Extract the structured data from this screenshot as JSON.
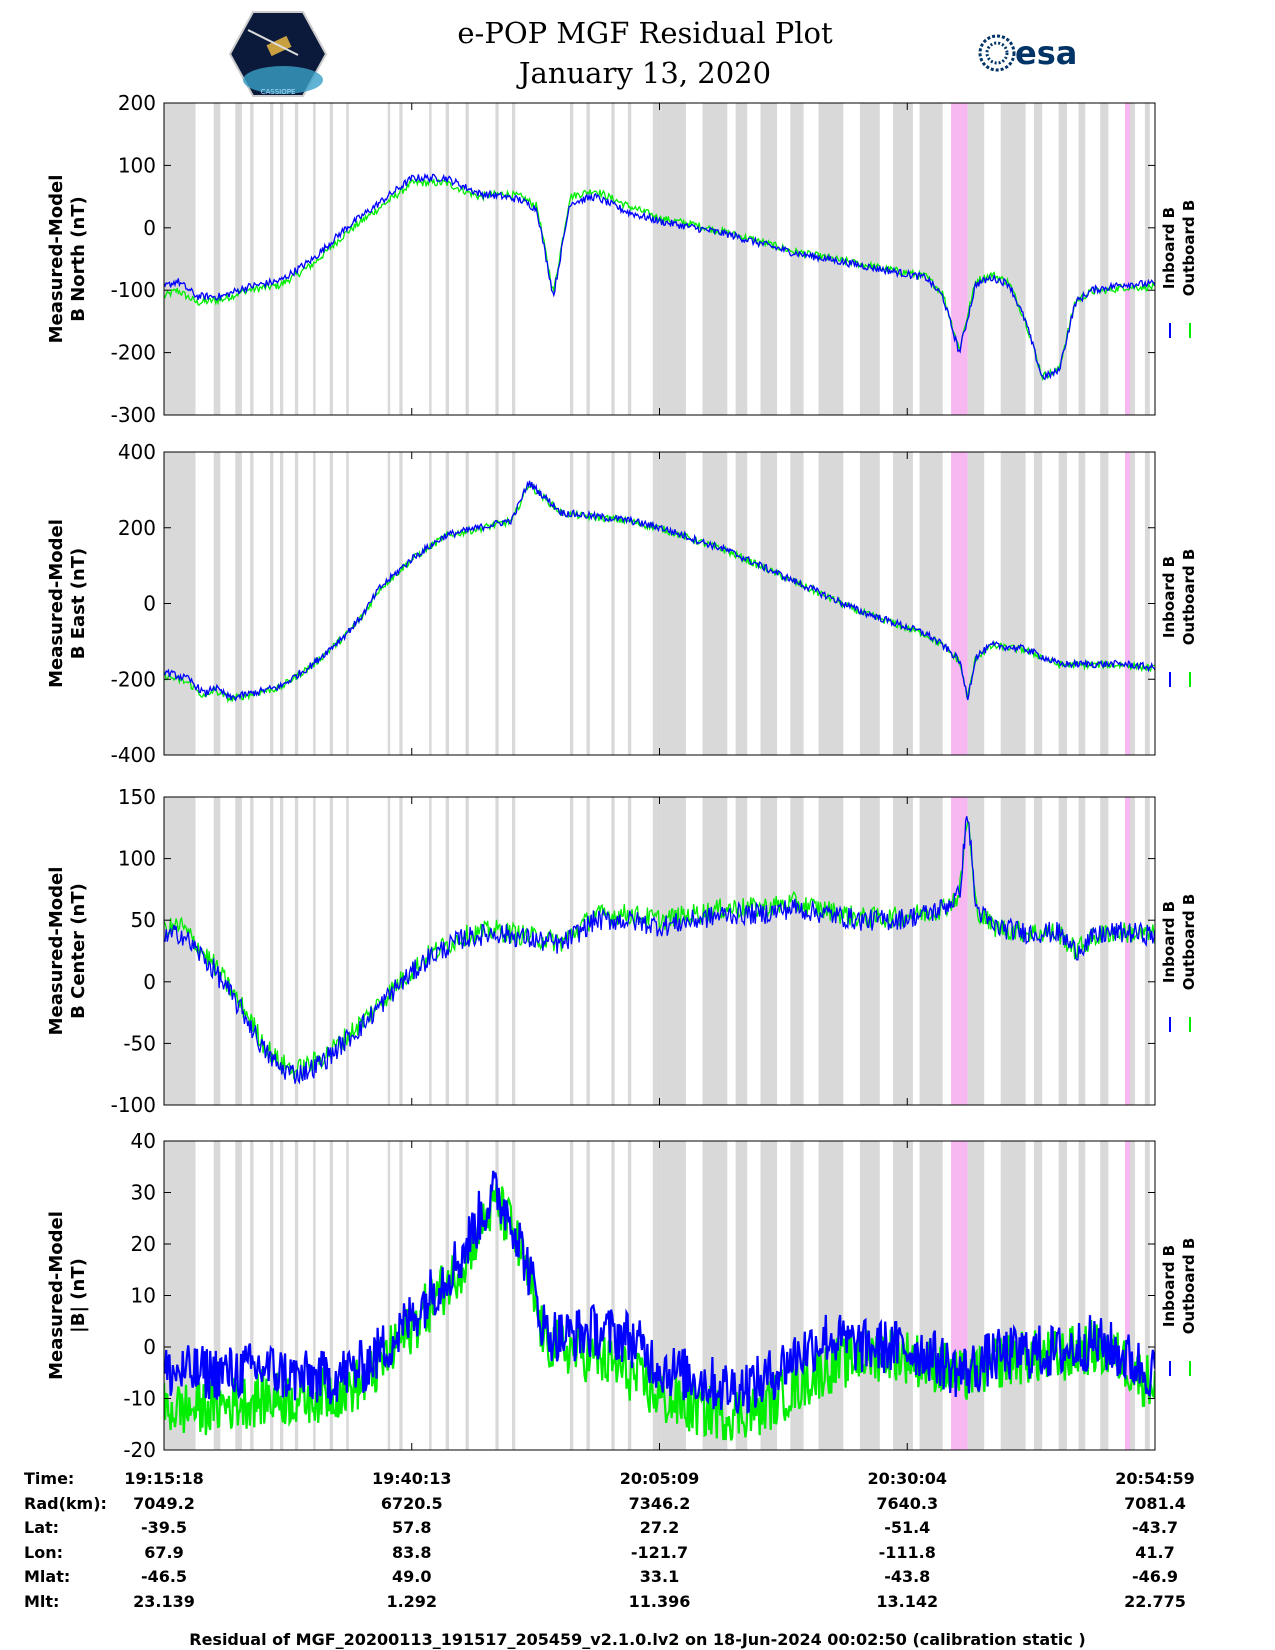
{
  "header": {
    "title_line1": "e-POP MGF Residual Plot",
    "title_line2": "January 13, 2020",
    "logo_left_text": "CASSIOPE",
    "logo_right_text": "esa"
  },
  "colors": {
    "inboard": "#0000ff",
    "outboard": "#00ee00",
    "gray_band": "#d9d9d9",
    "pink_band": "#f7b8f2"
  },
  "legend": {
    "inboard_label": "Inboard B",
    "outboard_label": "Outboard B"
  },
  "time_axis": {
    "start_seconds": 0,
    "end_seconds": 5981
  },
  "chart_data": [
    {
      "type": "line",
      "id": "b-north",
      "ylabel_line1": "Measured-Model",
      "ylabel_line2": "B North (nT)",
      "ylim": [
        -300,
        200
      ],
      "yticks": [
        -300,
        -200,
        -100,
        0,
        100,
        200
      ],
      "series": [
        {
          "name": "Inboard B",
          "x": [
            0,
            80,
            200,
            350,
            500,
            700,
            900,
            1100,
            1300,
            1500,
            1700,
            1900,
            2050,
            2150,
            2250,
            2350,
            2450,
            2600,
            2800,
            3000,
            3200,
            3400,
            3600,
            3800,
            4000,
            4200,
            4400,
            4600,
            4700,
            4800,
            4900,
            5000,
            5100,
            5200,
            5300,
            5400,
            5500,
            5600,
            5700,
            5800,
            5981
          ],
          "values": [
            -95,
            -85,
            -110,
            -110,
            -95,
            -85,
            -50,
            0,
            40,
            80,
            80,
            55,
            50,
            45,
            30,
            -110,
            40,
            50,
            25,
            10,
            0,
            -10,
            -25,
            -40,
            -50,
            -60,
            -70,
            -80,
            -110,
            -200,
            -90,
            -80,
            -90,
            -150,
            -240,
            -230,
            -120,
            -100,
            -95,
            -90,
            -90
          ]
        },
        {
          "name": "Outboard B",
          "x": [
            0,
            80,
            200,
            350,
            500,
            700,
            900,
            1100,
            1300,
            1500,
            1700,
            1900,
            2050,
            2150,
            2250,
            2350,
            2450,
            2600,
            2800,
            3000,
            3200,
            3400,
            3600,
            3800,
            4000,
            4200,
            4400,
            4600,
            4700,
            4800,
            4900,
            5000,
            5100,
            5200,
            5300,
            5400,
            5500,
            5600,
            5700,
            5800,
            5981
          ],
          "values": [
            -110,
            -100,
            -120,
            -115,
            -100,
            -92,
            -58,
            -8,
            32,
            72,
            72,
            50,
            55,
            50,
            35,
            -105,
            50,
            60,
            35,
            15,
            5,
            -8,
            -22,
            -38,
            -48,
            -58,
            -68,
            -78,
            -105,
            -195,
            -85,
            -75,
            -88,
            -150,
            -238,
            -228,
            -118,
            -102,
            -100,
            -95,
            -95
          ]
        }
      ]
    },
    {
      "type": "line",
      "id": "b-east",
      "ylabel_line1": "Measured-Model",
      "ylabel_line2": "B East (nT)",
      "ylim": [
        -400,
        400
      ],
      "yticks": [
        -400,
        -200,
        0,
        200,
        400
      ],
      "series": [
        {
          "name": "Inboard B",
          "x": [
            0,
            150,
            250,
            300,
            400,
            500,
            700,
            900,
            1100,
            1200,
            1300,
            1500,
            1700,
            1900,
            2100,
            2200,
            2400,
            2600,
            2800,
            3000,
            3200,
            3400,
            3600,
            3800,
            4000,
            4200,
            4400,
            4600,
            4700,
            4800,
            4850,
            4900,
            5000,
            5200,
            5400,
            5600,
            5800,
            5981
          ],
          "values": [
            -180,
            -200,
            -240,
            -220,
            -250,
            -240,
            -220,
            -160,
            -80,
            -30,
            40,
            120,
            180,
            200,
            220,
            320,
            240,
            230,
            220,
            200,
            170,
            140,
            100,
            60,
            20,
            -20,
            -50,
            -80,
            -110,
            -150,
            -250,
            -140,
            -110,
            -120,
            -160,
            -160,
            -160,
            -170
          ]
        },
        {
          "name": "Outboard B",
          "x": [
            0,
            150,
            250,
            300,
            400,
            500,
            700,
            900,
            1100,
            1200,
            1300,
            1500,
            1700,
            1900,
            2100,
            2200,
            2400,
            2600,
            2800,
            3000,
            3200,
            3400,
            3600,
            3800,
            4000,
            4200,
            4400,
            4600,
            4700,
            4800,
            4850,
            4900,
            5000,
            5200,
            5400,
            5600,
            5800,
            5981
          ],
          "values": [
            -190,
            -210,
            -250,
            -228,
            -252,
            -242,
            -222,
            -162,
            -82,
            -32,
            38,
            118,
            178,
            198,
            218,
            315,
            238,
            228,
            218,
            198,
            168,
            138,
            98,
            58,
            18,
            -22,
            -52,
            -82,
            -112,
            -152,
            -248,
            -142,
            -112,
            -122,
            -162,
            -162,
            -162,
            -172
          ]
        }
      ]
    },
    {
      "type": "line",
      "id": "b-center",
      "ylabel_line1": "Measured-Model",
      "ylabel_line2": "B Center (nT)",
      "ylim": [
        -100,
        150
      ],
      "yticks": [
        -100,
        -50,
        0,
        50,
        100,
        150
      ],
      "series": [
        {
          "name": "Inboard B",
          "x": [
            0,
            100,
            200,
            300,
            400,
            500,
            600,
            700,
            800,
            900,
            1000,
            1200,
            1400,
            1600,
            1800,
            2000,
            2200,
            2400,
            2600,
            2800,
            3000,
            3200,
            3400,
            3600,
            3800,
            4000,
            4200,
            4400,
            4600,
            4700,
            4800,
            4850,
            4900,
            5000,
            5200,
            5400,
            5500,
            5600,
            5700,
            5800,
            5981
          ],
          "values": [
            35,
            40,
            25,
            10,
            -10,
            -30,
            -55,
            -70,
            -75,
            -70,
            -60,
            -35,
            -5,
            20,
            35,
            40,
            35,
            30,
            50,
            50,
            45,
            50,
            55,
            55,
            60,
            55,
            50,
            50,
            55,
            60,
            70,
            140,
            60,
            45,
            40,
            40,
            25,
            35,
            40,
            40,
            38
          ]
        },
        {
          "name": "Outboard B",
          "x": [
            0,
            100,
            200,
            300,
            400,
            500,
            600,
            700,
            800,
            900,
            1000,
            1200,
            1400,
            1600,
            1800,
            2000,
            2200,
            2400,
            2600,
            2800,
            3000,
            3200,
            3400,
            3600,
            3800,
            4000,
            4200,
            4400,
            4600,
            4700,
            4800,
            4850,
            4900,
            5000,
            5200,
            5400,
            5500,
            5600,
            5700,
            5800,
            5981
          ],
          "values": [
            42,
            46,
            30,
            14,
            -6,
            -26,
            -50,
            -66,
            -72,
            -66,
            -57,
            -32,
            -3,
            22,
            37,
            42,
            37,
            32,
            54,
            55,
            50,
            55,
            60,
            60,
            64,
            58,
            52,
            52,
            56,
            60,
            70,
            136,
            60,
            45,
            40,
            40,
            25,
            35,
            40,
            40,
            38
          ]
        }
      ]
    },
    {
      "type": "line",
      "id": "b-magnitude",
      "ylabel_line1": "Measured-Model",
      "ylabel_line2": "|B| (nT)",
      "ylim": [
        -20,
        40
      ],
      "yticks": [
        -20,
        -10,
        0,
        10,
        20,
        30,
        40
      ],
      "series": [
        {
          "name": "Inboard B",
          "x": [
            0,
            200,
            400,
            600,
            800,
            1000,
            1200,
            1400,
            1600,
            1800,
            1900,
            2000,
            2100,
            2200,
            2300,
            2400,
            2600,
            2800,
            3000,
            3200,
            3400,
            3600,
            3800,
            4000,
            4200,
            4400,
            4600,
            4700,
            4800,
            4900,
            5000,
            5200,
            5400,
            5600,
            5700,
            5800,
            5900,
            5981
          ],
          "values": [
            -5,
            -5,
            -5,
            -4,
            -6,
            -6,
            -4,
            2,
            10,
            18,
            25,
            30,
            25,
            15,
            3,
            2,
            3,
            2,
            -4,
            -6,
            -8,
            -7,
            -2,
            2,
            0,
            0,
            -1,
            -3,
            -5,
            -4,
            -2,
            -1,
            -1,
            1,
            0,
            -2,
            -4,
            -5
          ]
        },
        {
          "name": "Outboard B",
          "x": [
            0,
            200,
            400,
            600,
            800,
            1000,
            1200,
            1400,
            1600,
            1800,
            1900,
            2000,
            2100,
            2200,
            2300,
            2400,
            2600,
            2800,
            3000,
            3200,
            3400,
            3600,
            3800,
            4000,
            4200,
            4400,
            4600,
            4700,
            4800,
            4900,
            5000,
            5200,
            5400,
            5600,
            5700,
            5800,
            5900,
            5981
          ],
          "values": [
            -12,
            -12,
            -11,
            -10,
            -10,
            -9,
            -7,
            0,
            8,
            16,
            23,
            28,
            23,
            13,
            1,
            0,
            -2,
            -5,
            -10,
            -12,
            -13,
            -12,
            -8,
            -4,
            -2,
            -1,
            -3,
            -4,
            -6,
            -5,
            -3,
            -2,
            -2,
            0,
            -1,
            -3,
            -6,
            -7
          ]
        }
      ]
    }
  ],
  "shading": {
    "gray_bands": [
      [
        0,
        190
      ],
      [
        300,
        340
      ],
      [
        430,
        470
      ],
      [
        520,
        540
      ],
      [
        640,
        660
      ],
      [
        700,
        720
      ],
      [
        790,
        810
      ],
      [
        900,
        915
      ],
      [
        1000,
        1020
      ],
      [
        1100,
        1115
      ],
      [
        1350,
        1365
      ],
      [
        1420,
        1440
      ],
      [
        1600,
        1615
      ],
      [
        1700,
        1720
      ],
      [
        1820,
        1840
      ],
      [
        2000,
        2020
      ],
      [
        2100,
        2120
      ],
      [
        2450,
        2470
      ],
      [
        2550,
        2570
      ],
      [
        2700,
        2720
      ],
      [
        2800,
        2820
      ],
      [
        2950,
        3000
      ],
      [
        3000,
        3150
      ],
      [
        3250,
        3400
      ],
      [
        3450,
        3520
      ],
      [
        3600,
        3700
      ],
      [
        3780,
        3860
      ],
      [
        3950,
        4100
      ],
      [
        4200,
        4320
      ],
      [
        4400,
        4520
      ],
      [
        4560,
        4700
      ],
      [
        4850,
        4950
      ],
      [
        5050,
        5200
      ],
      [
        5250,
        5300
      ],
      [
        5400,
        5450
      ],
      [
        5520,
        5560
      ],
      [
        5650,
        5700
      ],
      [
        5820,
        5860
      ],
      [
        5920,
        5950
      ]
    ],
    "pink_bands": [
      [
        4750,
        4850
      ],
      [
        5800,
        5830
      ]
    ]
  },
  "info_table": {
    "labels": [
      "Time:",
      "Rad(km):",
      "Lat:",
      "Lon:",
      "Mlat:",
      "Mlt:"
    ],
    "columns": [
      [
        "19:15:18",
        "7049.2",
        "-39.5",
        "67.9",
        "-46.5",
        "23.139"
      ],
      [
        "19:40:13",
        "6720.5",
        "57.8",
        "83.8",
        "49.0",
        "1.292"
      ],
      [
        "20:05:09",
        "7346.2",
        "27.2",
        "-121.7",
        "33.1",
        "11.396"
      ],
      [
        "20:30:04",
        "7640.3",
        "-51.4",
        "-111.8",
        "-43.8",
        "13.142"
      ],
      [
        "20:54:59",
        "7081.4",
        "-43.7",
        "41.7",
        "-46.9",
        "22.775"
      ]
    ]
  },
  "footer": "Residual of MGF_20200113_191517_205459_v2.1.0.lv2 on 18-Jun-2024 00:02:50 (calibration static )"
}
